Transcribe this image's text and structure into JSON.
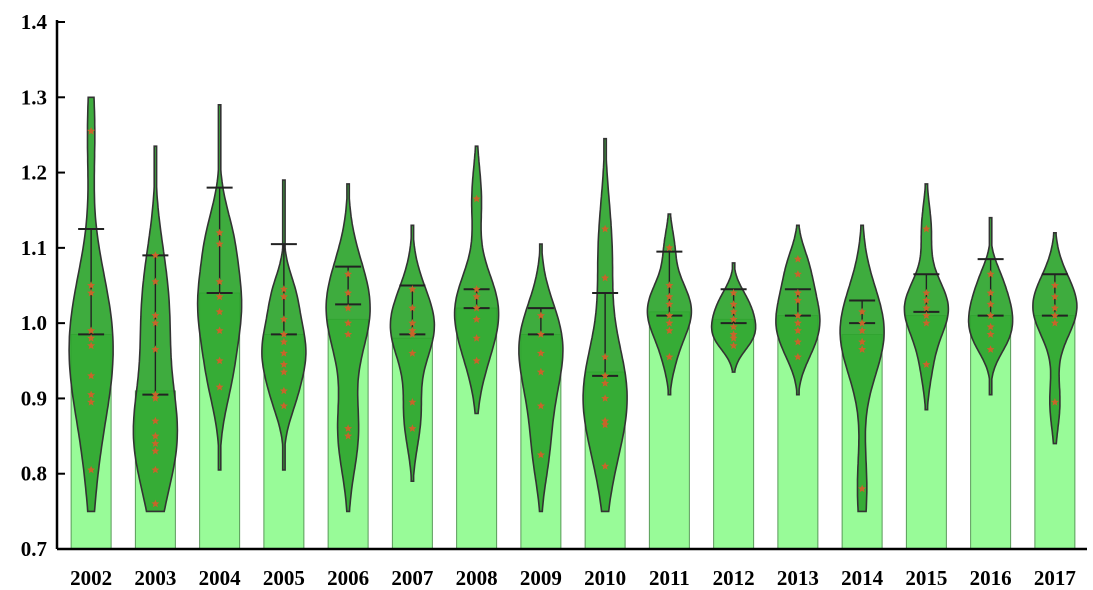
{
  "chart_data": {
    "type": "violin",
    "title": "",
    "xlabel": "",
    "ylabel": "",
    "ylim": [
      0.7,
      1.4
    ],
    "yticks": [
      "0.7",
      "0.8",
      "0.9",
      "1.0",
      "1.1",
      "1.2",
      "1.3",
      "1.4"
    ],
    "grid": false,
    "colors": {
      "bar_fill": "#98fb98",
      "violin_fill": "#2ea52e",
      "violin_stroke": "#333333",
      "point": "#c8642a",
      "axis": "#000000"
    },
    "categories": [
      "2002",
      "2003",
      "2004",
      "2005",
      "2006",
      "2007",
      "2008",
      "2009",
      "2010",
      "2011",
      "2012",
      "2013",
      "2014",
      "2015",
      "2016",
      "2017"
    ],
    "bar_values": [
      0.985,
      0.91,
      1.04,
      0.985,
      1.005,
      0.98,
      1.02,
      0.985,
      0.935,
      1.015,
      1.005,
      1.01,
      0.985,
      1.01,
      1.01,
      1.01
    ],
    "quartiles": [
      [
        0.985,
        1.125
      ],
      [
        0.905,
        1.09
      ],
      [
        1.04,
        1.18
      ],
      [
        0.985,
        1.105
      ],
      [
        1.025,
        1.075
      ],
      [
        0.985,
        1.05
      ],
      [
        1.02,
        1.045
      ],
      [
        0.985,
        1.02
      ],
      [
        0.93,
        1.04
      ],
      [
        1.01,
        1.095
      ],
      [
        1.0,
        1.045
      ],
      [
        1.01,
        1.045
      ],
      [
        1.0,
        1.03
      ],
      [
        1.015,
        1.065
      ],
      [
        1.01,
        1.085
      ],
      [
        1.01,
        1.065
      ]
    ],
    "violin_range": [
      [
        0.75,
        1.3
      ],
      [
        0.75,
        1.235
      ],
      [
        0.805,
        1.29
      ],
      [
        0.805,
        1.19
      ],
      [
        0.75,
        1.185
      ],
      [
        0.79,
        1.13
      ],
      [
        0.88,
        1.235
      ],
      [
        0.75,
        1.105
      ],
      [
        0.75,
        1.245
      ],
      [
        0.905,
        1.145
      ],
      [
        0.935,
        1.08
      ],
      [
        0.905,
        1.13
      ],
      [
        0.75,
        1.13
      ],
      [
        0.885,
        1.185
      ],
      [
        0.905,
        1.14
      ],
      [
        0.84,
        1.12
      ]
    ],
    "points": [
      [
        1.255,
        1.05,
        1.04,
        0.99,
        0.98,
        0.97,
        0.93,
        0.905,
        0.895,
        0.805
      ],
      [
        1.09,
        1.055,
        1.01,
        1.0,
        0.965,
        0.905,
        0.9,
        0.87,
        0.85,
        0.84,
        0.83,
        0.805,
        0.76
      ],
      [
        1.12,
        1.105,
        1.055,
        1.035,
        1.015,
        0.99,
        0.95,
        0.915
      ],
      [
        1.045,
        1.035,
        1.005,
        0.985,
        0.975,
        0.96,
        0.945,
        0.935,
        0.91,
        0.89
      ],
      [
        1.065,
        1.04,
        1.02,
        1.0,
        0.985,
        0.86,
        0.85
      ],
      [
        1.045,
        1.02,
        1.0,
        0.99,
        0.985,
        0.96,
        0.895,
        0.86
      ],
      [
        1.165,
        1.045,
        1.035,
        1.02,
        1.005,
        0.98,
        0.95
      ],
      [
        1.01,
        0.985,
        0.96,
        0.935,
        0.89,
        0.825
      ],
      [
        1.125,
        1.06,
        0.955,
        0.93,
        0.92,
        0.9,
        0.87,
        0.865,
        0.81
      ],
      [
        1.1,
        1.05,
        1.035,
        1.025,
        1.01,
        1.0,
        0.99,
        0.955
      ],
      [
        1.04,
        1.025,
        1.015,
        1.005,
        0.995,
        0.985,
        0.98,
        0.97
      ],
      [
        1.085,
        1.065,
        1.04,
        1.03,
        1.01,
        1.0,
        0.99,
        0.975,
        0.955
      ],
      [
        1.015,
        1.0,
        0.99,
        0.975,
        0.965,
        0.78
      ],
      [
        1.125,
        1.04,
        1.03,
        1.02,
        1.01,
        1.0,
        0.945
      ],
      [
        1.065,
        1.04,
        1.025,
        1.01,
        0.995,
        0.985,
        0.965
      ],
      [
        1.05,
        1.035,
        1.02,
        1.01,
        1.0,
        0.895
      ]
    ]
  }
}
